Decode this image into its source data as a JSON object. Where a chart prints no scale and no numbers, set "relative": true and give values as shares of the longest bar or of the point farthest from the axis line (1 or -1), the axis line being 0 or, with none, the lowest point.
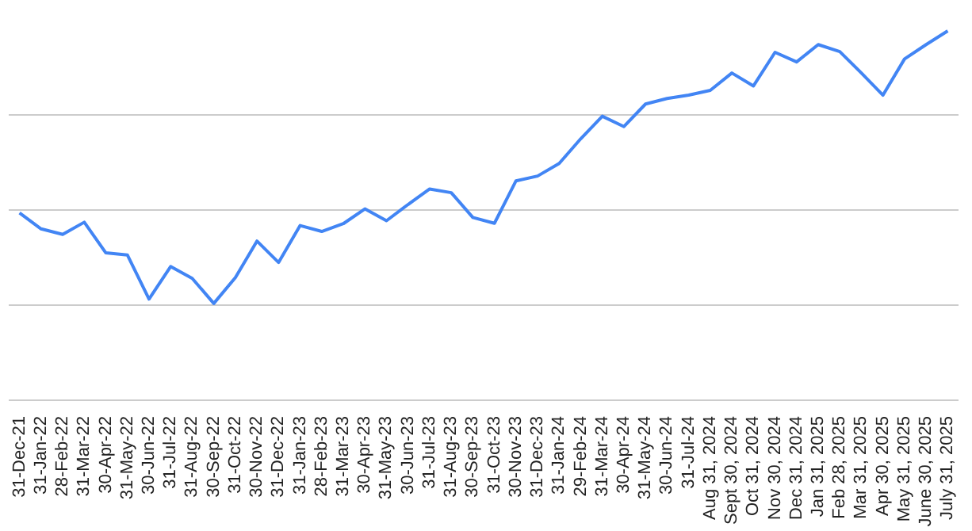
{
  "chart_data": {
    "type": "line",
    "relative": true,
    "grid": "y",
    "color": "#4285f4",
    "categories": [
      "31-Dec-21",
      "31-Jan-22",
      "28-Feb-22",
      "31-Mar-22",
      "30-Apr-22",
      "31-May-22",
      "30-Jun-22",
      "31-Jul-22",
      "31-Aug-22",
      "30-Sep-22",
      "31-Oct-22",
      "30-Nov-22",
      "31-Dec-22",
      "31-Jan-23",
      "28-Feb-23",
      "31-Mar-23",
      "30-Apr-23",
      "31-May-23",
      "30-Jun-23",
      "31-Jul-23",
      "31-Aug-23",
      "30-Sep-23",
      "31-Oct-23",
      "30-Nov-23",
      "31-Dec-23",
      "31-Jan-24",
      "29-Feb-24",
      "31-Mar-24",
      "30-Apr-24",
      "31-May-24",
      "30-Jun-24",
      "31-Jul-24",
      "Aug 31, 2024",
      "Sept 30, 2024",
      "Oct 31, 2024",
      "Nov 30, 2024",
      "Dec 31, 2024",
      "Jan 31, 2025",
      "Feb 28, 2025",
      "Mar 31, 2025",
      "Apr 30, 2025",
      "May 31, 2025",
      "June 30, 2025",
      "July 31, 2025"
    ],
    "values": [
      0.507,
      0.464,
      0.449,
      0.482,
      0.399,
      0.393,
      0.274,
      0.362,
      0.33,
      0.262,
      0.332,
      0.431,
      0.373,
      0.473,
      0.457,
      0.478,
      0.518,
      0.486,
      0.53,
      0.572,
      0.562,
      0.495,
      0.479,
      0.594,
      0.607,
      0.641,
      0.708,
      0.769,
      0.741,
      0.802,
      0.817,
      0.826,
      0.839,
      0.886,
      0.851,
      0.942,
      0.916,
      0.963,
      0.944,
      0.886,
      0.826,
      0.924,
      0.963,
      1.0
    ]
  }
}
